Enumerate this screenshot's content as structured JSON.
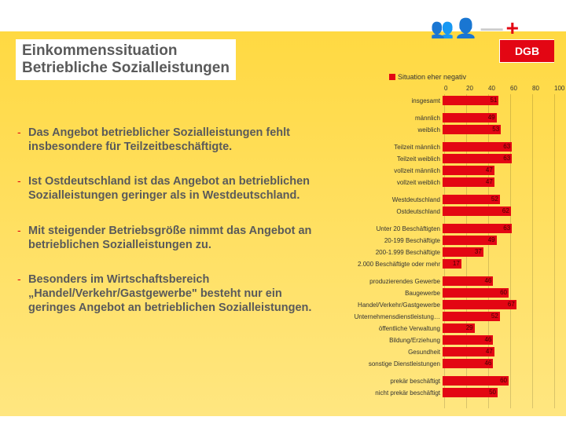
{
  "title": {
    "line1": "Einkommenssituation",
    "line2": "Betriebliche Sozialleistungen"
  },
  "dgb": "DGB",
  "header_symbols": {
    "people": "👥👤",
    "minus": "—",
    "plus": "+"
  },
  "bullets": [
    "Das Angebot betrieblicher Sozialleistungen fehlt insbesondere für Teilzeitbeschäftigte.",
    "Ist Ostdeutschland ist das Angebot an betrieblichen Sozialleistungen geringer als in Westdeutschland.",
    "Mit steigender Betriebsgröße nimmt das Angebot an betrieblichen Sozialleistungen zu.",
    "Besonders im Wirtschaftsbereich „Handel/Verkehr/Gastgewerbe\" besteht nur ein geringes Angebot an betrieblichen Sozialleistungen."
  ],
  "chart": {
    "legend_label": "Situation eher negativ",
    "bar_color": "#e30613",
    "xmax": 100,
    "ticks": [
      "0",
      "20",
      "40",
      "60",
      "80",
      "100"
    ],
    "groups": [
      {
        "rows": [
          {
            "label": "insgesamt",
            "value": 51
          }
        ]
      },
      {
        "rows": [
          {
            "label": "männlich",
            "value": 49
          },
          {
            "label": "weiblich",
            "value": 53
          }
        ]
      },
      {
        "rows": [
          {
            "label": "Teilzeit männlich",
            "value": 63
          },
          {
            "label": "Teilzeit weiblich",
            "value": 63
          },
          {
            "label": "vollzeit männlich",
            "value": 47
          },
          {
            "label": "vollzeit weiblich",
            "value": 47
          }
        ]
      },
      {
        "rows": [
          {
            "label": "Westdeutschland",
            "value": 52
          },
          {
            "label": "Ostdeutschland",
            "value": 62
          }
        ]
      },
      {
        "rows": [
          {
            "label": "Unter 20 Beschäftigten",
            "value": 63
          },
          {
            "label": "20-199 Beschäftigte",
            "value": 49
          },
          {
            "label": "200-1.999 Beschäftigte",
            "value": 37
          },
          {
            "label": "2.000 Beschäftigte oder mehr",
            "value": 17
          }
        ]
      },
      {
        "rows": [
          {
            "label": "produzierendes Gewerbe",
            "value": 46
          },
          {
            "label": "Baugewerbe",
            "value": 60
          },
          {
            "label": "Handel/Verkehr/Gastgewerbe",
            "value": 67
          },
          {
            "label": "Unternehmensdienstleistung…",
            "value": 52
          },
          {
            "label": "öffentliche Verwaltung",
            "value": 29
          },
          {
            "label": "Bildung/Erziehung",
            "value": 46
          },
          {
            "label": "Gesundheit",
            "value": 47
          },
          {
            "label": "sonstige Dienstleistungen",
            "value": 46
          }
        ]
      },
      {
        "rows": [
          {
            "label": "prekär beschäftigt",
            "value": 60
          },
          {
            "label": "nicht prekär beschäftigt",
            "value": 50
          }
        ]
      }
    ]
  }
}
